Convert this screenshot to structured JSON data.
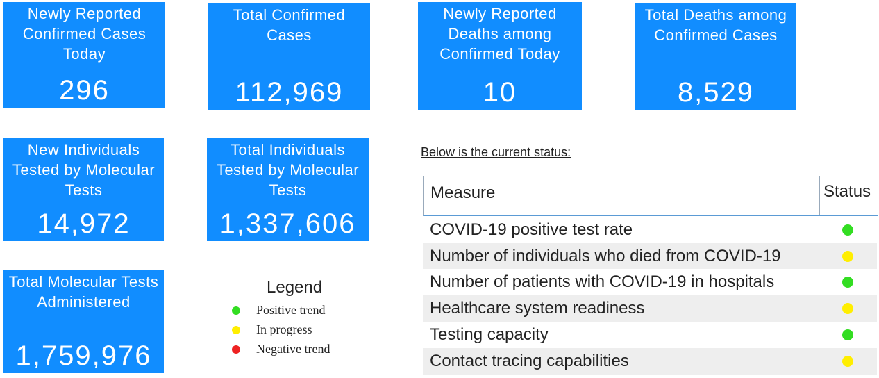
{
  "cards": [
    {
      "label": "Newly Reported Confirmed Cases Today",
      "value": "296"
    },
    {
      "label": "Total Confirmed Cases",
      "value": "112,969"
    },
    {
      "label": "Newly Reported Deaths among Confirmed Today",
      "value": "10"
    },
    {
      "label": "Total Deaths among Confirmed Cases",
      "value": "8,529"
    },
    {
      "label": "New Individuals Tested by Molecular Tests",
      "value": "14,972"
    },
    {
      "label": "Total Individuals Tested by Molecular Tests",
      "value": "1,337,606"
    },
    {
      "label": "Total Molecular Tests Administered",
      "value": "1,759,976"
    }
  ],
  "legend": {
    "title": "Legend",
    "items": [
      {
        "label": "Positive trend",
        "color": "#33dd22"
      },
      {
        "label": "In progress",
        "color": "#ffee00"
      },
      {
        "label": "Negative trend",
        "color": "#ee2222"
      }
    ]
  },
  "status_note": "Below is the current status:",
  "table": {
    "header": [
      "Measure",
      "Status"
    ],
    "rows": [
      {
        "measure": "COVID-19 positive test rate",
        "status_color": "#33dd22"
      },
      {
        "measure": "Number of individuals who died from COVID-19",
        "status_color": "#ffee00"
      },
      {
        "measure": "Number of patients with COVID-19 in hospitals",
        "status_color": "#33dd22"
      },
      {
        "measure": "Healthcare system readiness",
        "status_color": "#ffee00"
      },
      {
        "measure": "Testing capacity",
        "status_color": "#33dd22"
      },
      {
        "measure": "Contact tracing capabilities",
        "status_color": "#ffee00"
      }
    ]
  }
}
